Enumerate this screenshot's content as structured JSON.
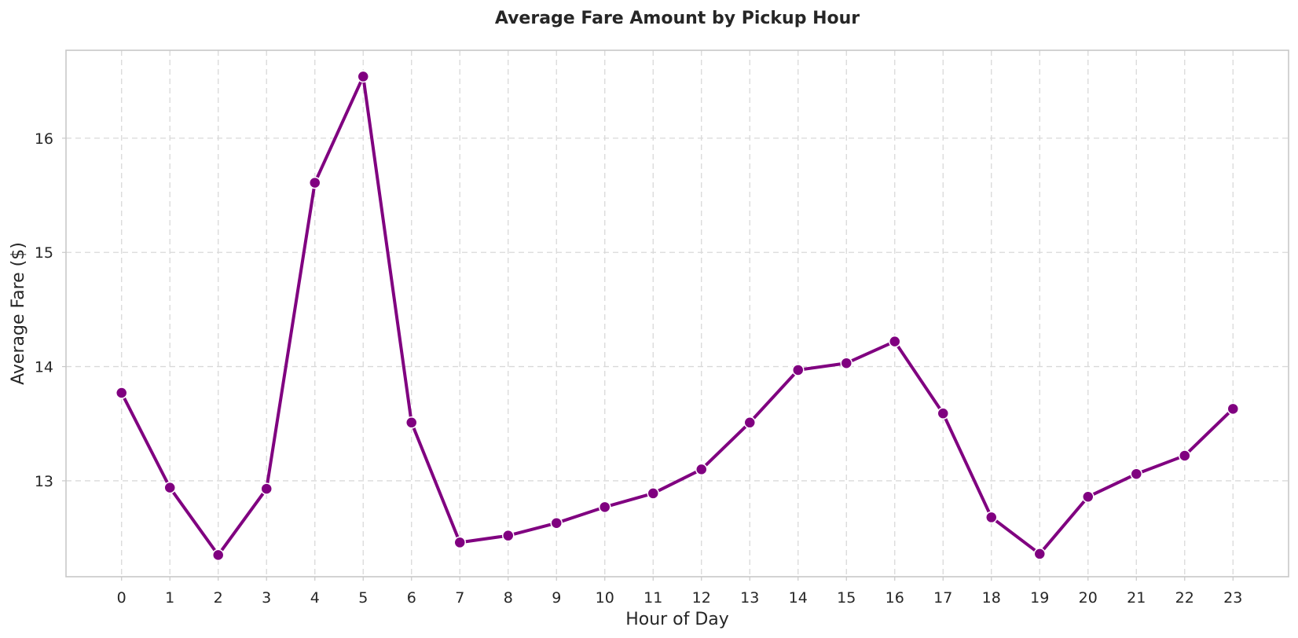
{
  "chart_data": {
    "type": "line",
    "title": "Average Fare Amount by Pickup Hour",
    "xlabel": "Hour of Day",
    "ylabel": "Average Fare ($)",
    "x": [
      0,
      1,
      2,
      3,
      4,
      5,
      6,
      7,
      8,
      9,
      10,
      11,
      12,
      13,
      14,
      15,
      16,
      17,
      18,
      19,
      20,
      21,
      22,
      23
    ],
    "y": [
      13.77,
      12.94,
      12.35,
      12.93,
      15.61,
      16.54,
      13.51,
      12.46,
      12.52,
      12.63,
      12.77,
      12.89,
      13.1,
      13.51,
      13.97,
      14.03,
      14.22,
      13.59,
      12.68,
      12.36,
      12.86,
      13.06,
      13.22,
      13.63
    ],
    "xlim": [
      -1.15,
      24.15
    ],
    "ylim": [
      12.16,
      16.77
    ],
    "yticks": [
      13,
      14,
      15,
      16
    ],
    "xticks": [
      0,
      1,
      2,
      3,
      4,
      5,
      6,
      7,
      8,
      9,
      10,
      11,
      12,
      13,
      14,
      15,
      16,
      17,
      18,
      19,
      20,
      21,
      22,
      23
    ],
    "grid": true,
    "grid_style": "dashed",
    "line_color": "#800080",
    "marker": "circle",
    "marker_color": "#800080",
    "marker_edge_color": "#ffffff"
  }
}
